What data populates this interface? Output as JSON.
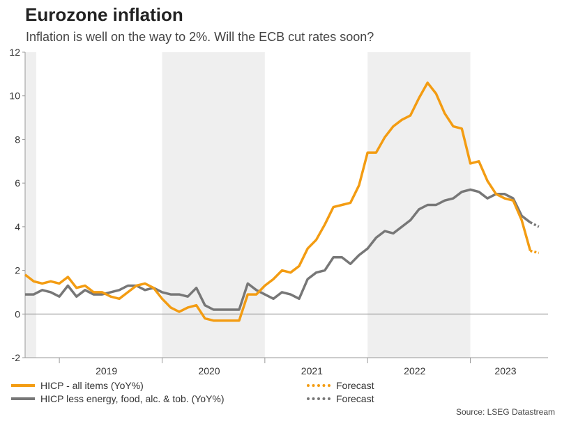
{
  "title": "Eurozone inflation",
  "subtitle": "Inflation is well on the way to 2%. Will the ECB cut rates soon?",
  "source": "Source: LSEG Datastream",
  "colors": {
    "hicp": "#f39c12",
    "core": "#777777",
    "shade": "#efefef",
    "axis": "#999999"
  },
  "legend": {
    "hicp": "HICP - all items (YoY%)",
    "core": "HICP less energy, food, alc. & tob. (YoY%)",
    "hicp_forecast": "Forecast",
    "core_forecast": "Forecast"
  },
  "chart_data": {
    "type": "line",
    "title": "Eurozone inflation",
    "subtitle": "Inflation is well on the way to 2%. Will the ECB cut rates soon?",
    "xlabel": "",
    "ylabel": "",
    "ylim": [
      -2,
      12
    ],
    "yticks": [
      -2,
      0,
      2,
      4,
      6,
      8,
      10,
      12
    ],
    "x_start": "2018-09",
    "x_range_months": [
      0,
      58
    ],
    "year_labels": [
      {
        "label": "2019",
        "mid_month": 9.5
      },
      {
        "label": "2020",
        "mid_month": 21.5
      },
      {
        "label": "2021",
        "mid_month": 33.5
      },
      {
        "label": "2022",
        "mid_month": 45.5
      },
      {
        "label": "2023",
        "mid_month": 57.5
      }
    ],
    "shaded_months": [
      [
        0,
        1.3
      ],
      [
        16,
        28
      ],
      [
        40,
        52
      ]
    ],
    "series": [
      {
        "name": "HICP - all items (YoY%)",
        "values": [
          1.8,
          1.5,
          1.4,
          1.5,
          1.4,
          1.7,
          1.2,
          1.3,
          1.0,
          1.0,
          0.8,
          0.7,
          1.0,
          1.3,
          1.4,
          1.2,
          0.7,
          0.3,
          0.1,
          0.3,
          0.4,
          -0.2,
          -0.3,
          -0.3,
          -0.3,
          -0.3,
          0.9,
          0.9,
          1.3,
          1.6,
          2.0,
          1.9,
          2.2,
          3.0,
          3.4,
          4.1,
          4.9,
          5.0,
          5.1,
          5.9,
          7.4,
          7.4,
          8.1,
          8.6,
          8.9,
          9.1,
          9.9,
          10.6,
          10.1,
          9.2,
          8.6,
          8.5,
          6.9,
          7.0,
          6.1,
          5.5,
          5.3,
          5.2,
          4.3,
          2.9
        ]
      },
      {
        "name": "HICP forecast",
        "values_from_index": 59,
        "values": [
          2.9,
          2.8
        ]
      },
      {
        "name": "HICP less energy, food, alc. & tob. (YoY%)",
        "values": [
          0.9,
          0.9,
          1.1,
          1.0,
          0.8,
          1.3,
          0.8,
          1.1,
          0.9,
          0.9,
          1.0,
          1.1,
          1.3,
          1.3,
          1.1,
          1.2,
          1.0,
          0.9,
          0.9,
          0.8,
          1.2,
          0.4,
          0.2,
          0.2,
          0.2,
          0.2,
          1.4,
          1.1,
          0.9,
          0.7,
          1.0,
          0.9,
          0.7,
          1.6,
          1.9,
          2.0,
          2.6,
          2.6,
          2.3,
          2.7,
          3.0,
          3.5,
          3.8,
          3.7,
          4.0,
          4.3,
          4.8,
          5.0,
          5.0,
          5.2,
          5.3,
          5.6,
          5.7,
          5.6,
          5.3,
          5.5,
          5.5,
          5.3,
          4.5,
          4.2
        ]
      },
      {
        "name": "Core forecast",
        "values_from_index": 59,
        "values": [
          4.2,
          4.0
        ]
      }
    ]
  }
}
